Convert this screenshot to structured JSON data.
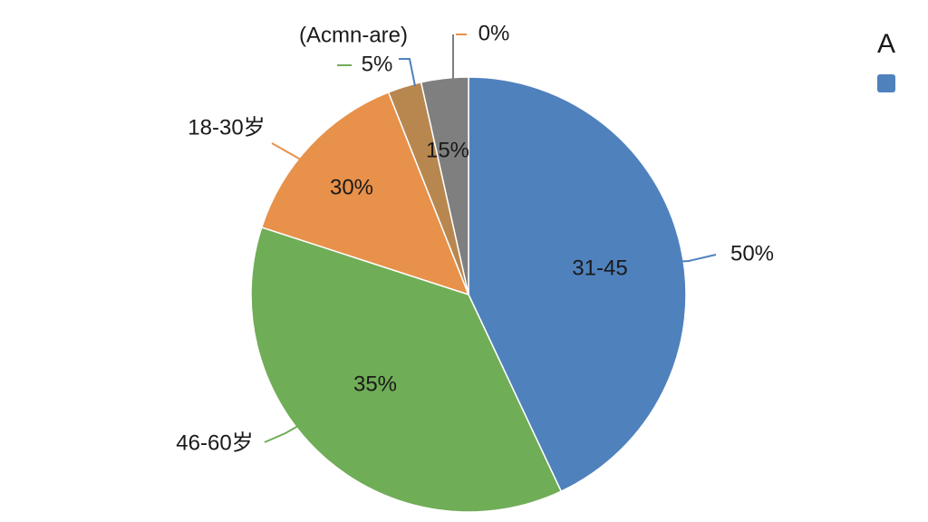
{
  "chart_data": {
    "type": "pie",
    "categories": [
      "31-45",
      "46-60岁",
      "18-30岁",
      "(Acmn-are)",
      null
    ],
    "values": [
      43,
      37,
      14,
      2.5,
      3.5
    ],
    "colors": [
      "#4f81bd",
      "#70ad57",
      "#e8914a",
      "#b8874f",
      "#7f7f7f"
    ],
    "annotations": [
      "50%",
      "35%",
      "30%",
      "15%",
      "5%",
      "0%"
    ],
    "legend": {
      "position": "top-right",
      "entries": [
        "A"
      ]
    }
  }
}
